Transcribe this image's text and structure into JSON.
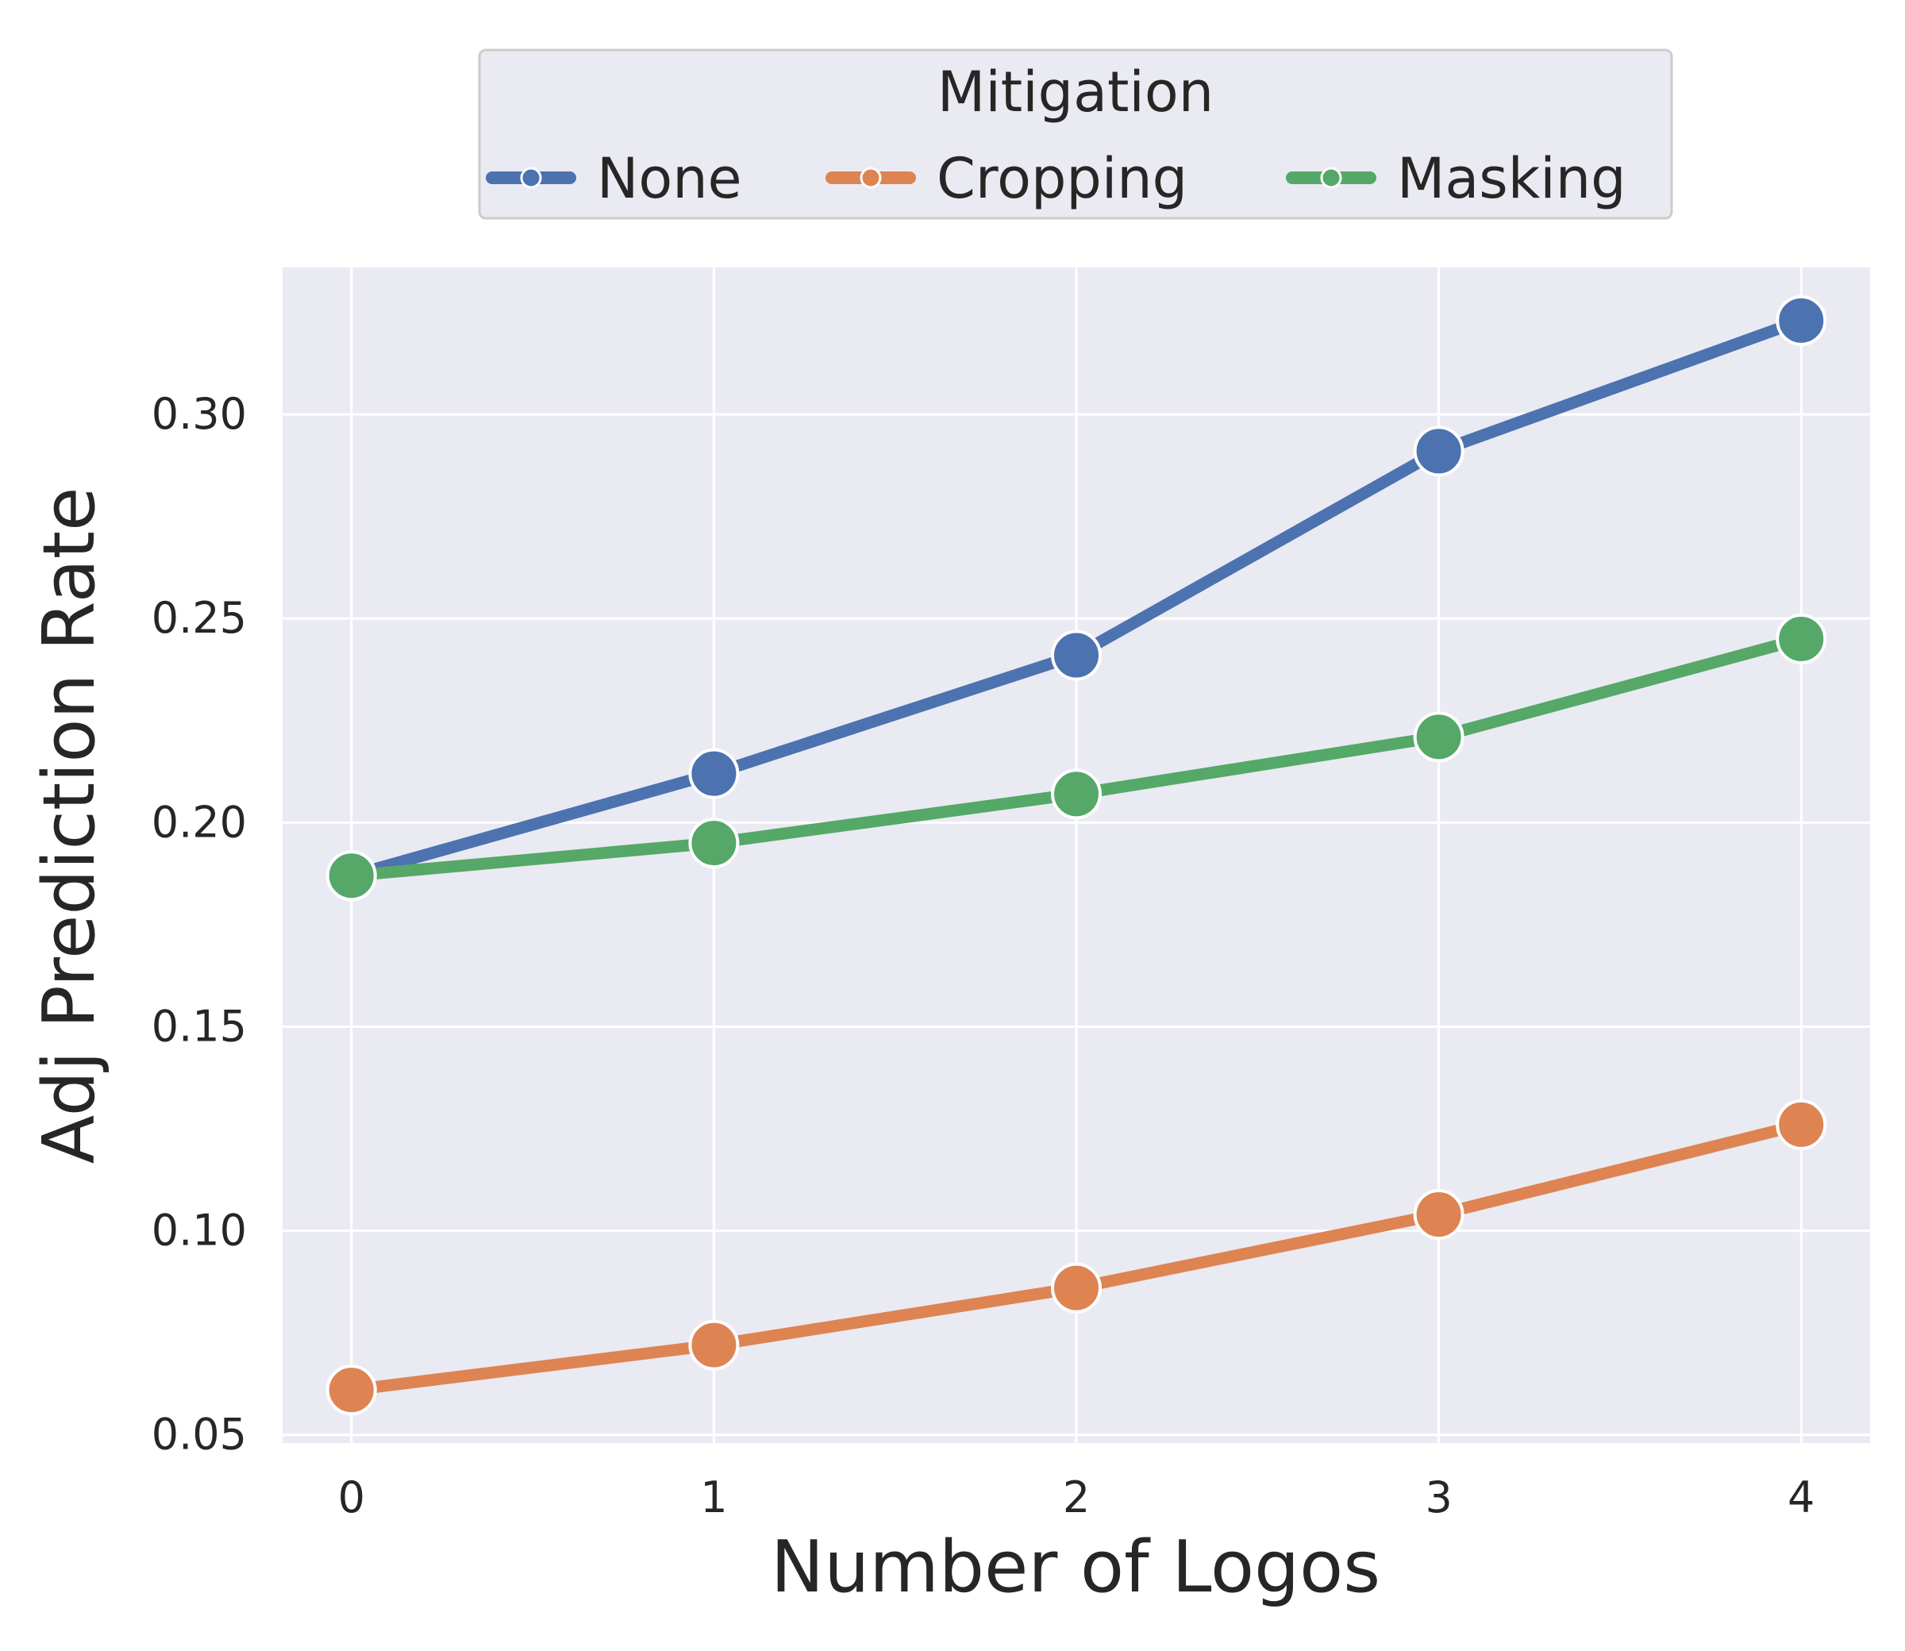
{
  "chart_data": {
    "type": "line",
    "title": "",
    "xlabel": "Number of Logos",
    "ylabel": "Adj Prediction Rate",
    "x": [
      0,
      1,
      2,
      3,
      4
    ],
    "x_tick_labels": [
      "0",
      "1",
      "2",
      "3",
      "4"
    ],
    "y_ticks": [
      0.05,
      0.1,
      0.15,
      0.2,
      0.25,
      0.3
    ],
    "y_tick_labels": [
      "0.05",
      "0.10",
      "0.15",
      "0.20",
      "0.25",
      "0.30"
    ],
    "xlim": [
      -0.19,
      4.19
    ],
    "ylim": [
      0.048,
      0.336
    ],
    "grid": true,
    "legend": {
      "title": "Mitigation",
      "placement": "top-center, above plot"
    },
    "series": [
      {
        "name": "None",
        "color": "#4c72b0",
        "values": [
          0.187,
          0.212,
          0.241,
          0.291,
          0.323
        ]
      },
      {
        "name": "Cropping",
        "color": "#dd8452",
        "values": [
          0.061,
          0.072,
          0.086,
          0.104,
          0.126
        ]
      },
      {
        "name": "Masking",
        "color": "#55a868",
        "values": [
          0.187,
          0.195,
          0.207,
          0.221,
          0.245
        ]
      }
    ],
    "colors": {
      "plot_background": "#eaeaf2",
      "grid": "#ffffff",
      "text": "#262626"
    }
  }
}
